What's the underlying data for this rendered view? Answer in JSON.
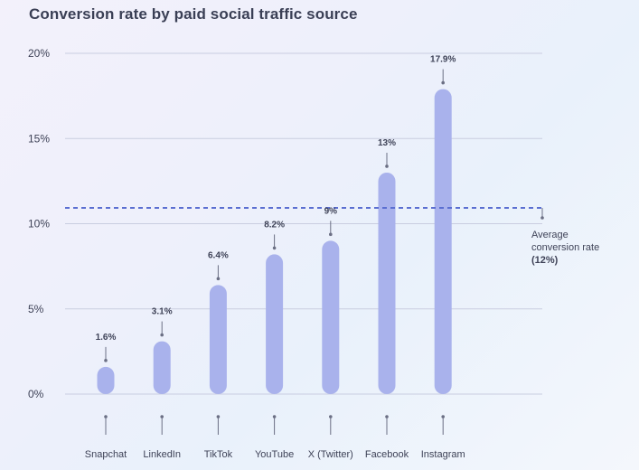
{
  "title": "Conversion rate by paid social traffic source",
  "colors": {
    "bar": "#a9b2ec",
    "average_line": "#5b6fd1",
    "grid": "#c9cde0",
    "marker": "#6b6f84",
    "text": "#3e4257"
  },
  "chart_data": {
    "type": "bar",
    "title": "Conversion rate by paid social traffic source",
    "xlabel": "",
    "ylabel": "",
    "ylim": [
      0,
      20
    ],
    "y_ticks": [
      "0%",
      "5%",
      "10%",
      "15%",
      "20%"
    ],
    "y_tick_values": [
      0,
      5,
      10,
      15,
      20
    ],
    "categories": [
      "Snapchat",
      "LinkedIn",
      "TikTok",
      "YouTube",
      "X (Twitter)",
      "Facebook",
      "Instagram"
    ],
    "values": [
      1.6,
      3.1,
      6.4,
      8.2,
      9,
      13,
      17.9
    ],
    "data_labels": [
      "1.6%",
      "3.1%",
      "6.4%",
      "8.2%",
      "9%",
      "13%",
      "17.9%"
    ],
    "reference_line": {
      "value": 12,
      "label_lines": [
        "Average",
        "conversion rate"
      ],
      "value_label": "(12%)"
    },
    "grid": true
  }
}
